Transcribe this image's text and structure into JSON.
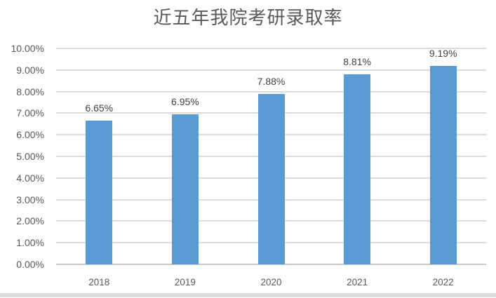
{
  "page": {
    "background_color": "#ffffff"
  },
  "chart_data": {
    "type": "bar",
    "title": "近五年我院考研录取率",
    "categories": [
      "2018",
      "2019",
      "2020",
      "2021",
      "2022"
    ],
    "values": [
      6.65,
      6.95,
      7.88,
      8.81,
      9.19
    ],
    "value_labels": [
      "6.65%",
      "6.95%",
      "7.88%",
      "8.81%",
      "9.19%"
    ],
    "y_ticks": [
      "0.00%",
      "1.00%",
      "2.00%",
      "3.00%",
      "4.00%",
      "5.00%",
      "6.00%",
      "7.00%",
      "8.00%",
      "9.00%",
      "10.00%"
    ],
    "ylim": [
      0,
      10
    ],
    "y_tick_step": 1,
    "xlabel": "",
    "ylabel": "",
    "grid": true,
    "legend": "none",
    "colors": {
      "bar": "#5B9BD5",
      "gridline": "#DCDCDC",
      "axis_line": "#C9C9C9",
      "title": "#595959",
      "tick_label": "#595959",
      "value_label": "#404040",
      "bottom_strip": "#DCDCDC"
    }
  }
}
